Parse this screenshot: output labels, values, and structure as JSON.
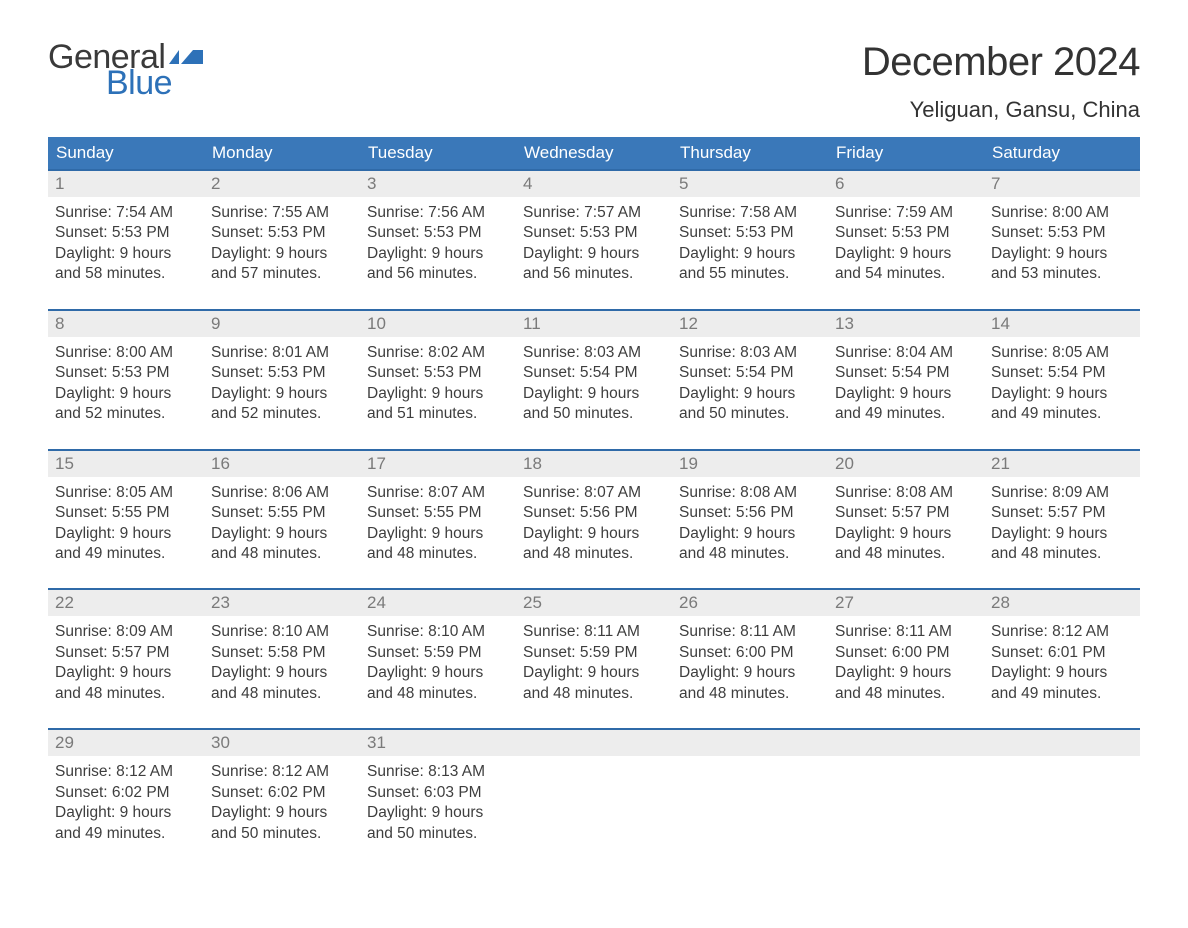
{
  "logo": {
    "text1": "General",
    "text2": "Blue",
    "text1_color": "#3a3a3a",
    "text2_color": "#2d71b8",
    "flag_color": "#2d71b8"
  },
  "title": "December 2024",
  "location": "Yeliguan, Gansu, China",
  "colors": {
    "header_bg": "#3a78b9",
    "header_text": "#ffffff",
    "daynum_bg": "#ededed",
    "daynum_text": "#7a7a7a",
    "row_border": "#2f6aa8",
    "body_text": "#3e3e3e",
    "background": "#ffffff"
  },
  "typography": {
    "title_size": 40,
    "location_size": 22,
    "dayheader_size": 17,
    "daynum_size": 17,
    "info_size": 15.5
  },
  "day_names": [
    "Sunday",
    "Monday",
    "Tuesday",
    "Wednesday",
    "Thursday",
    "Friday",
    "Saturday"
  ],
  "weeks": [
    [
      {
        "n": "1",
        "sunrise": "7:54 AM",
        "sunset": "5:53 PM",
        "dl1": "Daylight: 9 hours",
        "dl2": "and 58 minutes."
      },
      {
        "n": "2",
        "sunrise": "7:55 AM",
        "sunset": "5:53 PM",
        "dl1": "Daylight: 9 hours",
        "dl2": "and 57 minutes."
      },
      {
        "n": "3",
        "sunrise": "7:56 AM",
        "sunset": "5:53 PM",
        "dl1": "Daylight: 9 hours",
        "dl2": "and 56 minutes."
      },
      {
        "n": "4",
        "sunrise": "7:57 AM",
        "sunset": "5:53 PM",
        "dl1": "Daylight: 9 hours",
        "dl2": "and 56 minutes."
      },
      {
        "n": "5",
        "sunrise": "7:58 AM",
        "sunset": "5:53 PM",
        "dl1": "Daylight: 9 hours",
        "dl2": "and 55 minutes."
      },
      {
        "n": "6",
        "sunrise": "7:59 AM",
        "sunset": "5:53 PM",
        "dl1": "Daylight: 9 hours",
        "dl2": "and 54 minutes."
      },
      {
        "n": "7",
        "sunrise": "8:00 AM",
        "sunset": "5:53 PM",
        "dl1": "Daylight: 9 hours",
        "dl2": "and 53 minutes."
      }
    ],
    [
      {
        "n": "8",
        "sunrise": "8:00 AM",
        "sunset": "5:53 PM",
        "dl1": "Daylight: 9 hours",
        "dl2": "and 52 minutes."
      },
      {
        "n": "9",
        "sunrise": "8:01 AM",
        "sunset": "5:53 PM",
        "dl1": "Daylight: 9 hours",
        "dl2": "and 52 minutes."
      },
      {
        "n": "10",
        "sunrise": "8:02 AM",
        "sunset": "5:53 PM",
        "dl1": "Daylight: 9 hours",
        "dl2": "and 51 minutes."
      },
      {
        "n": "11",
        "sunrise": "8:03 AM",
        "sunset": "5:54 PM",
        "dl1": "Daylight: 9 hours",
        "dl2": "and 50 minutes."
      },
      {
        "n": "12",
        "sunrise": "8:03 AM",
        "sunset": "5:54 PM",
        "dl1": "Daylight: 9 hours",
        "dl2": "and 50 minutes."
      },
      {
        "n": "13",
        "sunrise": "8:04 AM",
        "sunset": "5:54 PM",
        "dl1": "Daylight: 9 hours",
        "dl2": "and 49 minutes."
      },
      {
        "n": "14",
        "sunrise": "8:05 AM",
        "sunset": "5:54 PM",
        "dl1": "Daylight: 9 hours",
        "dl2": "and 49 minutes."
      }
    ],
    [
      {
        "n": "15",
        "sunrise": "8:05 AM",
        "sunset": "5:55 PM",
        "dl1": "Daylight: 9 hours",
        "dl2": "and 49 minutes."
      },
      {
        "n": "16",
        "sunrise": "8:06 AM",
        "sunset": "5:55 PM",
        "dl1": "Daylight: 9 hours",
        "dl2": "and 48 minutes."
      },
      {
        "n": "17",
        "sunrise": "8:07 AM",
        "sunset": "5:55 PM",
        "dl1": "Daylight: 9 hours",
        "dl2": "and 48 minutes."
      },
      {
        "n": "18",
        "sunrise": "8:07 AM",
        "sunset": "5:56 PM",
        "dl1": "Daylight: 9 hours",
        "dl2": "and 48 minutes."
      },
      {
        "n": "19",
        "sunrise": "8:08 AM",
        "sunset": "5:56 PM",
        "dl1": "Daylight: 9 hours",
        "dl2": "and 48 minutes."
      },
      {
        "n": "20",
        "sunrise": "8:08 AM",
        "sunset": "5:57 PM",
        "dl1": "Daylight: 9 hours",
        "dl2": "and 48 minutes."
      },
      {
        "n": "21",
        "sunrise": "8:09 AM",
        "sunset": "5:57 PM",
        "dl1": "Daylight: 9 hours",
        "dl2": "and 48 minutes."
      }
    ],
    [
      {
        "n": "22",
        "sunrise": "8:09 AM",
        "sunset": "5:57 PM",
        "dl1": "Daylight: 9 hours",
        "dl2": "and 48 minutes."
      },
      {
        "n": "23",
        "sunrise": "8:10 AM",
        "sunset": "5:58 PM",
        "dl1": "Daylight: 9 hours",
        "dl2": "and 48 minutes."
      },
      {
        "n": "24",
        "sunrise": "8:10 AM",
        "sunset": "5:59 PM",
        "dl1": "Daylight: 9 hours",
        "dl2": "and 48 minutes."
      },
      {
        "n": "25",
        "sunrise": "8:11 AM",
        "sunset": "5:59 PM",
        "dl1": "Daylight: 9 hours",
        "dl2": "and 48 minutes."
      },
      {
        "n": "26",
        "sunrise": "8:11 AM",
        "sunset": "6:00 PM",
        "dl1": "Daylight: 9 hours",
        "dl2": "and 48 minutes."
      },
      {
        "n": "27",
        "sunrise": "8:11 AM",
        "sunset": "6:00 PM",
        "dl1": "Daylight: 9 hours",
        "dl2": "and 48 minutes."
      },
      {
        "n": "28",
        "sunrise": "8:12 AM",
        "sunset": "6:01 PM",
        "dl1": "Daylight: 9 hours",
        "dl2": "and 49 minutes."
      }
    ],
    [
      {
        "n": "29",
        "sunrise": "8:12 AM",
        "sunset": "6:02 PM",
        "dl1": "Daylight: 9 hours",
        "dl2": "and 49 minutes."
      },
      {
        "n": "30",
        "sunrise": "8:12 AM",
        "sunset": "6:02 PM",
        "dl1": "Daylight: 9 hours",
        "dl2": "and 50 minutes."
      },
      {
        "n": "31",
        "sunrise": "8:13 AM",
        "sunset": "6:03 PM",
        "dl1": "Daylight: 9 hours",
        "dl2": "and 50 minutes."
      },
      null,
      null,
      null,
      null
    ]
  ],
  "labels": {
    "sunrise_prefix": "Sunrise: ",
    "sunset_prefix": "Sunset: "
  }
}
